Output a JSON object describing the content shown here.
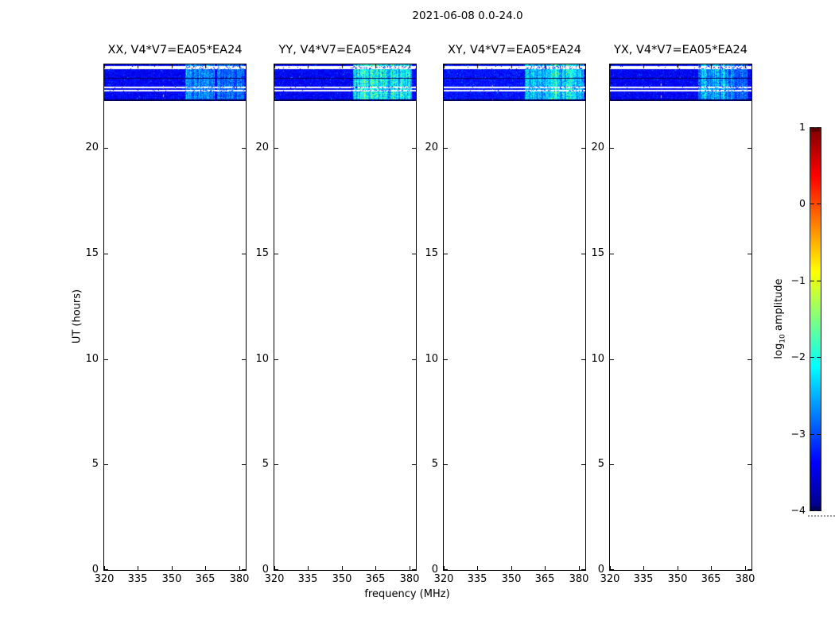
{
  "figure": {
    "suptitle": "2021-06-08 0.0-24.0",
    "xlabel": "frequency (MHz)",
    "ylabel": "UT (hours)",
    "colorbar_label_prefix": "log",
    "colorbar_label_sub": "10",
    "colorbar_label_suffix": " amplitude"
  },
  "chart_data": {
    "type": "heatmap",
    "suptitle": "2021-06-08 0.0-24.0",
    "xlabel": "frequency (MHz)",
    "ylabel": "UT (hours)",
    "xlim": [
      320,
      383
    ],
    "ylim": [
      0,
      24
    ],
    "x_ticks": [
      320,
      335,
      350,
      365,
      380
    ],
    "y_ticks": [
      0,
      5,
      10,
      15,
      20
    ],
    "tick_direction": "in",
    "grid": false,
    "data_ut_extent": [
      22.25,
      24.0
    ],
    "band_rows": [
      [
        0.0,
        0.054,
        "data"
      ],
      [
        0.054,
        0.13,
        "gap"
      ],
      [
        0.13,
        0.359,
        "data"
      ],
      [
        0.359,
        0.402,
        "dark"
      ],
      [
        0.402,
        0.609,
        "data"
      ],
      [
        0.609,
        0.652,
        "gap"
      ],
      [
        0.652,
        0.696,
        "data"
      ],
      [
        0.696,
        0.739,
        "gap"
      ],
      [
        0.739,
        0.967,
        "data"
      ],
      [
        0.967,
        1.0,
        "dark"
      ]
    ],
    "panels": [
      {
        "id": "xx",
        "title": "XX, V4*V7=EA05*EA24",
        "base_level": 0.07,
        "bright_regions": [
          [
            356,
            369,
            0.16
          ],
          [
            370,
            382,
            0.13
          ]
        ],
        "specks": [
          {
            "f": 346.3,
            "row": 27,
            "h": 3,
            "t": 0.65
          },
          {
            "f": 346.3,
            "row": 38,
            "h": 3,
            "t": 0.65
          }
        ]
      },
      {
        "id": "yy",
        "title": "YY, V4*V7=EA05*EA24",
        "base_level": 0.07,
        "bright_regions": [
          [
            355,
            368,
            0.3
          ],
          [
            368,
            381,
            0.26
          ]
        ],
        "specks": []
      },
      {
        "id": "xy",
        "title": "XY, V4*V7=EA05*EA24",
        "base_level": 0.09,
        "bright_regions": [
          [
            356,
            368,
            0.2
          ],
          [
            368,
            382,
            0.24
          ]
        ],
        "specks": [
          {
            "f": 341.5,
            "row": 26,
            "h": 4,
            "t": 0.65
          },
          {
            "f": 341.5,
            "row": 43,
            "h": 2,
            "t": 0.85
          }
        ]
      },
      {
        "id": "yx",
        "title": "YX, V4*V7=EA05*EA24",
        "base_level": 0.07,
        "bright_regions": [
          [
            359,
            372,
            0.2
          ],
          [
            372,
            381,
            0.14
          ]
        ],
        "specks": [
          {
            "f": 342.5,
            "row": 24,
            "h": 3,
            "t": 0.65
          },
          {
            "f": 342.5,
            "row": 39,
            "h": 3,
            "t": 0.65
          }
        ]
      }
    ],
    "colorbar": {
      "label": "log10 amplitude",
      "ticks": [
        1,
        0,
        -1,
        -2,
        -3,
        -4
      ],
      "tick_labels": [
        "1",
        "0",
        "−1",
        "−2",
        "−3",
        "−4"
      ],
      "lim": [
        -4,
        1
      ],
      "colormap": "jet",
      "legend_position": "right"
    }
  }
}
